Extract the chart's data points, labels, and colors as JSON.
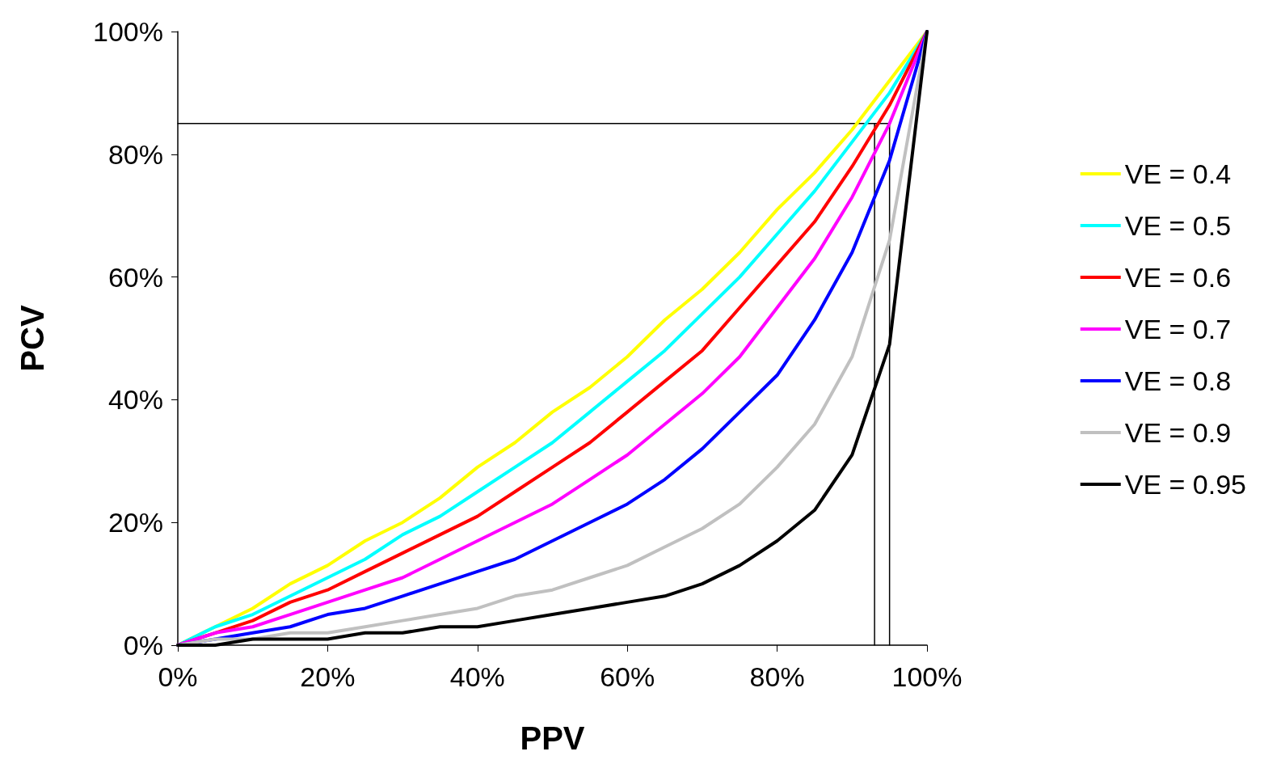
{
  "chart_data": {
    "type": "line",
    "xlabel": "PPV",
    "ylabel": "PCV",
    "x": [
      0,
      5,
      10,
      15,
      20,
      25,
      30,
      35,
      40,
      45,
      50,
      55,
      60,
      65,
      70,
      75,
      80,
      85,
      90,
      95,
      100
    ],
    "xlim": [
      0,
      100
    ],
    "ylim": [
      0,
      100
    ],
    "xticks": [
      {
        "value": 0,
        "label": "0%"
      },
      {
        "value": 20,
        "label": "20%"
      },
      {
        "value": 40,
        "label": "40%"
      },
      {
        "value": 60,
        "label": "60%"
      },
      {
        "value": 80,
        "label": "80%"
      },
      {
        "value": 100,
        "label": "100%"
      }
    ],
    "yticks": [
      {
        "value": 0,
        "label": "0%"
      },
      {
        "value": 20,
        "label": "20%"
      },
      {
        "value": 40,
        "label": "40%"
      },
      {
        "value": 60,
        "label": "60%"
      },
      {
        "value": 80,
        "label": "80%"
      },
      {
        "value": 100,
        "label": "100%"
      }
    ],
    "grid": false,
    "legend": "right",
    "marker": "none",
    "line_style": "solid",
    "series": [
      {
        "name": "VE = 0.4",
        "color": "#ffff00",
        "values": [
          0,
          3,
          6,
          10,
          13,
          17,
          20,
          24,
          29,
          33,
          38,
          42,
          47,
          53,
          58,
          64,
          71,
          77,
          84,
          92,
          100
        ]
      },
      {
        "name": "VE = 0.5",
        "color": "#00ffff",
        "values": [
          0,
          3,
          5,
          8,
          11,
          14,
          18,
          21,
          25,
          29,
          33,
          38,
          43,
          48,
          54,
          60,
          67,
          74,
          82,
          90,
          100
        ]
      },
      {
        "name": "VE = 0.6",
        "color": "#ff0000",
        "values": [
          0,
          2,
          4,
          7,
          9,
          12,
          15,
          18,
          21,
          25,
          29,
          33,
          38,
          43,
          48,
          55,
          62,
          69,
          78,
          88,
          100
        ]
      },
      {
        "name": "VE = 0.7",
        "color": "#ff00ff",
        "values": [
          0,
          2,
          3,
          5,
          7,
          9,
          11,
          14,
          17,
          20,
          23,
          27,
          31,
          36,
          41,
          47,
          55,
          63,
          73,
          85,
          100
        ]
      },
      {
        "name": "VE = 0.8",
        "color": "#0000ff",
        "values": [
          0,
          1,
          2,
          3,
          5,
          6,
          8,
          10,
          12,
          14,
          17,
          20,
          23,
          27,
          32,
          38,
          44,
          53,
          64,
          79,
          100
        ]
      },
      {
        "name": "VE = 0.9",
        "color": "#c0c0c0",
        "values": [
          0,
          1,
          1,
          2,
          2,
          3,
          4,
          5,
          6,
          8,
          9,
          11,
          13,
          16,
          19,
          23,
          29,
          36,
          47,
          66,
          100
        ]
      },
      {
        "name": "VE = 0.95",
        "color": "#000000",
        "values": [
          0,
          0,
          1,
          1,
          1,
          2,
          2,
          3,
          3,
          4,
          5,
          6,
          7,
          8,
          10,
          13,
          17,
          22,
          31,
          49,
          100
        ]
      },
      {
        "color": "#000000",
        "x": [
          0,
          95,
          95
        ],
        "values": [
          85,
          85,
          0
        ]
      },
      {
        "color": "#000000",
        "x": [
          93,
          93
        ],
        "values": [
          85,
          0
        ]
      }
    ]
  }
}
